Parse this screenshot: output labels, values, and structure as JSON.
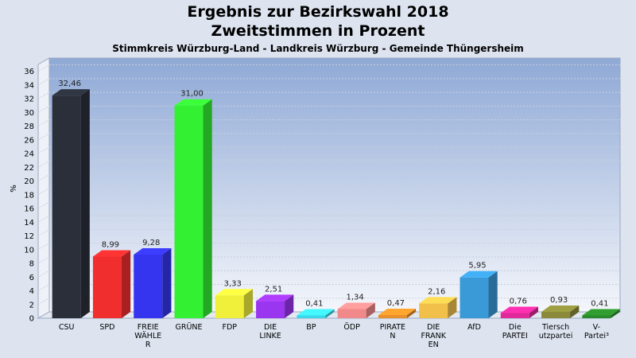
{
  "title": "Ergebnis zur Bezirkswahl 2018",
  "subtitle": "Zweitstimmen in Prozent",
  "subsubtitle": "Stimmkreis Würzburg-Land - Landkreis Würzburg - Gemeinde Thüngersheim",
  "chart_data": {
    "type": "bar",
    "ylabel": "%",
    "ylim": [
      0,
      37
    ],
    "yticks": [
      0,
      2,
      4,
      6,
      8,
      10,
      12,
      14,
      16,
      18,
      20,
      22,
      24,
      26,
      28,
      30,
      32,
      34,
      36
    ],
    "grid": true,
    "categories": [
      [
        "CSU"
      ],
      [
        "SPD"
      ],
      [
        "FREIE",
        "WÄHLE",
        "R"
      ],
      [
        "GRÜNE"
      ],
      [
        "FDP"
      ],
      [
        "DIE",
        "LINKE"
      ],
      [
        "BP"
      ],
      [
        "ÖDP"
      ],
      [
        "PIRATE",
        "N"
      ],
      [
        "DIE",
        "FRANK",
        "EN"
      ],
      [
        "AfD"
      ],
      [
        "Die",
        "PARTEI"
      ],
      [
        "Tiersch",
        "utzpartei"
      ],
      [
        "V-",
        "Partei³"
      ]
    ],
    "values": [
      32.46,
      8.99,
      9.28,
      31.0,
      3.33,
      2.51,
      0.41,
      1.34,
      0.47,
      2.16,
      5.95,
      0.76,
      0.93,
      0.41
    ],
    "value_labels": [
      "32,46",
      "8,99",
      "9,28",
      "31,00",
      "3,33",
      "2,51",
      "0,41",
      "1,34",
      "0,47",
      "2,16",
      "5,95",
      "0,76",
      "0,93",
      "0,41"
    ],
    "colors": [
      "#2b2f3a",
      "#f02e2e",
      "#3535f0",
      "#33f033",
      "#f0f03a",
      "#9a35f0",
      "#3ad8e8",
      "#f08a8a",
      "#e8902a",
      "#f0c04a",
      "#3a9ad8",
      "#e02a9a",
      "#8a8a3a",
      "#2a8a2a"
    ]
  }
}
